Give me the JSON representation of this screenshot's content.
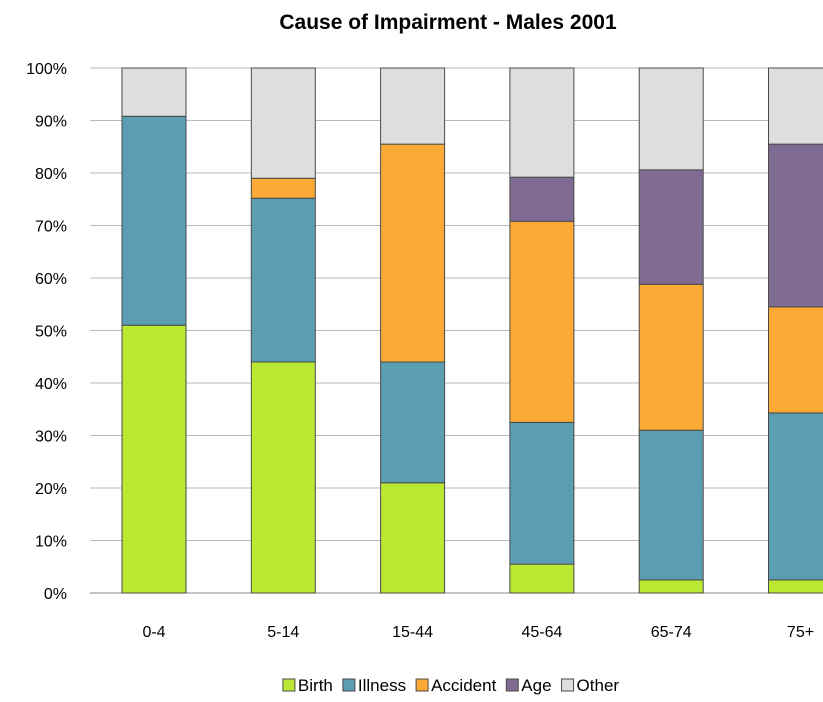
{
  "chart_data": {
    "type": "bar",
    "stacked": true,
    "normalized_percent": true,
    "title": "Cause of Impairment - Males 2001",
    "xlabel": "",
    "ylabel": "",
    "ylim": [
      0,
      100
    ],
    "y_ticks": [
      "0%",
      "10%",
      "20%",
      "30%",
      "40%",
      "50%",
      "60%",
      "70%",
      "80%",
      "90%",
      "100%"
    ],
    "grid": true,
    "legend_position": "bottom",
    "categories": [
      "0-4",
      "5-14",
      "15-44",
      "45-64",
      "65-74",
      "75+"
    ],
    "series": [
      {
        "name": "Birth",
        "color": "#bbe833",
        "values": [
          51,
          44,
          21,
          5.5,
          2.5,
          2.5
        ]
      },
      {
        "name": "Illness",
        "color": "#5b9db1",
        "values": [
          39.8,
          31.2,
          23,
          27,
          28.5,
          31.8
        ]
      },
      {
        "name": "Accident",
        "color": "#fbab35",
        "values": [
          0,
          3.8,
          41.5,
          38.3,
          27.8,
          20.2
        ]
      },
      {
        "name": "Age",
        "color": "#806b93",
        "values": [
          0,
          0,
          0,
          8.4,
          21.8,
          31
        ]
      },
      {
        "name": "Other",
        "color": "#dedede",
        "values": [
          9.2,
          21,
          14.5,
          20.8,
          19.4,
          14.5
        ]
      }
    ]
  }
}
